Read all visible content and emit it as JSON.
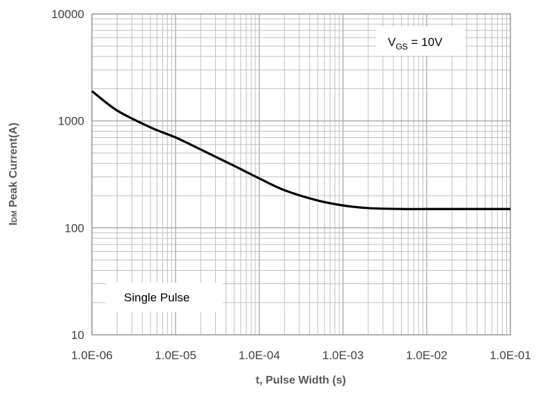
{
  "chart_data": {
    "type": "line",
    "title": "",
    "xlabel": "t, Pulse Width (s)",
    "ylabel_main": "I",
    "ylabel_sub": "DM",
    "ylabel_rest": " Peak Current(A)",
    "x_scale": "log",
    "y_scale": "log",
    "xlim": [
      1e-06,
      0.1
    ],
    "ylim": [
      10,
      10000
    ],
    "x_ticks": [
      1e-06,
      1e-05,
      0.0001,
      0.001,
      0.01,
      0.1
    ],
    "x_tick_labels": [
      "1.0E-06",
      "1.0E-05",
      "1.0E-04",
      "1.0E-03",
      "1.0E-02",
      "1.0E-01"
    ],
    "y_ticks": [
      10,
      100,
      1000,
      10000
    ],
    "y_tick_labels": [
      "10",
      "100",
      "1000",
      "10000"
    ],
    "grid": true,
    "series": [
      {
        "x": [
          1e-06,
          2e-06,
          5e-06,
          1e-05,
          2e-05,
          5e-05,
          0.0001,
          0.0002,
          0.0005,
          0.001,
          0.002,
          0.005,
          0.01,
          0.02,
          0.05,
          0.1
        ],
        "y": [
          1900,
          1250,
          870,
          700,
          540,
          380,
          290,
          225,
          180,
          162,
          153,
          150,
          150,
          150,
          150,
          150
        ]
      }
    ],
    "annotations": {
      "vgs_main": "V",
      "vgs_sub": "GS",
      "vgs_rest": " = 10V",
      "single_pulse": "Single Pulse"
    },
    "colors": {
      "line": "#000000",
      "grid": "#bfbfbf",
      "major_grid": "#a6a6a6"
    }
  }
}
